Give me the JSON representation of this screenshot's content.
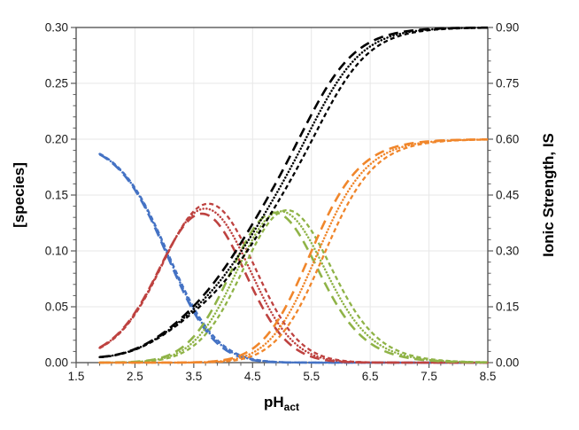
{
  "chart_data": {
    "type": "line",
    "title": "",
    "xlabel": {
      "base": "pH",
      "sub": "act"
    },
    "ylabel_left": "[species]",
    "ylabel_right": "Ionic Strength, IS",
    "x_range": [
      1.5,
      8.5
    ],
    "y_left_range": [
      0.0,
      0.3
    ],
    "y_right_range": [
      0.0,
      0.9
    ],
    "x_major_ticks": [
      "1.5",
      "2.5",
      "3.5",
      "4.5",
      "5.5",
      "6.5",
      "7.5",
      "8.5"
    ],
    "x_minor_step": 0.2,
    "y_left_ticks": [
      "0.00",
      "0.05",
      "0.10",
      "0.15",
      "0.20",
      "0.25",
      "0.30"
    ],
    "y_left_minor_step": 0.01,
    "y_right_ticks": [
      "0.00",
      "0.15",
      "0.30",
      "0.45",
      "0.60",
      "0.75",
      "0.90"
    ],
    "y_right_minor_step": 0.03,
    "grid": {
      "shown": true,
      "color": "#e7e7e7",
      "x_step": 1.0,
      "y_left_step": 0.05
    },
    "frame_color": "#595959",
    "legend": "none",
    "ph_start": 1.9,
    "ph_end": 8.5,
    "total_concentration": 0.2,
    "style_variants": [
      {
        "id": "long-dash",
        "dash": [
          11,
          6.5
        ],
        "width": 2.6,
        "cap": "butt",
        "pKa": [
          3.04,
          4.25,
          5.48
        ]
      },
      {
        "id": "dotted",
        "dash": [
          0.1,
          3.6
        ],
        "width": 2.5,
        "cap": "round",
        "pKa": [
          3.05,
          4.35,
          5.6
        ]
      },
      {
        "id": "short-dash",
        "dash": [
          5,
          3.4
        ],
        "width": 2.3,
        "cap": "butt",
        "pKa": [
          3.06,
          4.45,
          5.72
        ]
      }
    ],
    "series_families": [
      {
        "id": "blue",
        "color": "#4472C4",
        "axis": "left",
        "species_index": 0,
        "description": "decreasing curve, 0.187 at pH 1.9 falling to ~0 by pH 5"
      },
      {
        "id": "red",
        "color": "#BE4240",
        "axis": "left",
        "species_index": 1,
        "description": "peak ~0.14 near pH 3.7"
      },
      {
        "id": "green",
        "color": "#8FB347",
        "axis": "left",
        "species_index": 2,
        "description": "peak ~0.135 near pH 5.0"
      },
      {
        "id": "orange",
        "color": "#F0862B",
        "axis": "left",
        "species_index": 3,
        "description": "sigmoid rising to 0.20 (0.60 on right axis)"
      },
      {
        "id": "black",
        "color": "#000000",
        "axis": "right",
        "species_index": -1,
        "description": "ionic strength sigmoid rising to ~0.90 on right axis"
      }
    ],
    "ionic_strength_model": {
      "scale": 0.375,
      "asymptote_right": 0.899
    },
    "sampled_reference": {
      "note": "values read from the dotted (middle) variant; black given on right axis",
      "x": [
        1.9,
        2.2,
        2.5,
        2.8,
        3.1,
        3.4,
        3.7,
        4.0,
        4.3,
        4.6,
        4.9,
        5.2,
        5.5,
        5.8,
        6.1,
        6.4,
        6.7,
        7.0,
        7.3,
        7.6,
        7.9,
        8.2,
        8.5
      ],
      "blue": [
        0.1867,
        0.1751,
        0.1555,
        0.1267,
        0.0915,
        0.0573,
        0.0309,
        0.0143,
        0.0056,
        0.0019,
        0.0005,
        0.0001,
        0.0,
        0.0,
        0.0,
        0.0,
        0.0,
        0.0,
        0.0,
        0.0,
        0.0,
        0.0,
        0.0
      ],
      "red": [
        0.0132,
        0.0247,
        0.0438,
        0.0713,
        0.1027,
        0.1282,
        0.1379,
        0.1274,
        0.1004,
        0.067,
        0.038,
        0.0183,
        0.0076,
        0.0027,
        0.0009,
        0.0002,
        0.0001,
        0.0,
        0.0,
        0.0,
        0.0,
        0.0,
        0.0
      ],
      "green": [
        0.0,
        0.0002,
        0.0006,
        0.002,
        0.0058,
        0.0144,
        0.0309,
        0.0569,
        0.0895,
        0.1192,
        0.1347,
        0.1298,
        0.1072,
        0.0763,
        0.0479,
        0.0273,
        0.0147,
        0.0077,
        0.0039,
        0.002,
        0.001,
        0.0005,
        0.0003
      ],
      "orange": [
        0.0,
        0.0,
        0.0,
        0.0,
        0.0,
        0.0001,
        0.0004,
        0.0014,
        0.0045,
        0.0119,
        0.0269,
        0.0517,
        0.0852,
        0.121,
        0.1513,
        0.1724,
        0.1852,
        0.1923,
        0.1961,
        0.198,
        0.199,
        0.1995,
        0.1997
      ],
      "black_right": [
        0.0147,
        0.0213,
        0.0355,
        0.0586,
        0.0904,
        0.1291,
        0.1747,
        0.2301,
        0.2968,
        0.372,
        0.4523,
        0.5385,
        0.6302,
        0.7181,
        0.7891,
        0.8376,
        0.8665,
        0.8827,
        0.8911,
        0.8955,
        0.8978,
        0.8989,
        0.8994
      ]
    }
  }
}
